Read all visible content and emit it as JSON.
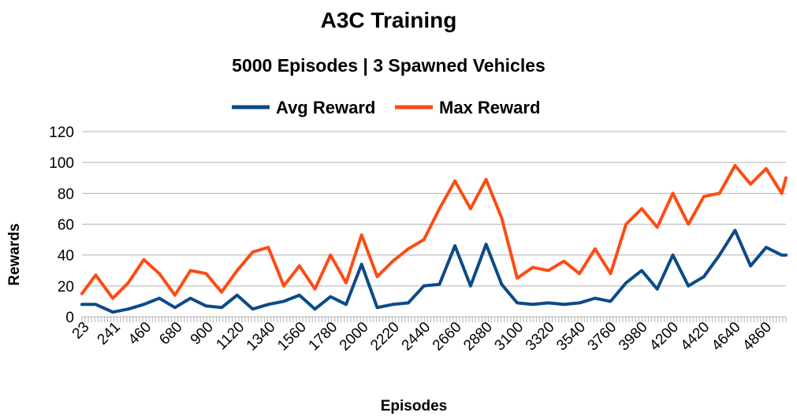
{
  "chart_data": {
    "type": "line",
    "title": "A3C Training",
    "subtitle": "5000 Episodes | 3 Spawned Vehicles",
    "xlabel": "Episodes",
    "ylabel": "Rewards",
    "ylim": [
      0,
      120
    ],
    "yticks": [
      0,
      20,
      40,
      60,
      80,
      100,
      120
    ],
    "xticks": [
      "23",
      "241",
      "460",
      "680",
      "900",
      "1120",
      "1340",
      "1560",
      "1780",
      "2000",
      "2220",
      "2440",
      "2660",
      "2880",
      "3100",
      "3320",
      "3540",
      "3760",
      "3980",
      "4200",
      "4420",
      "4640",
      "4860"
    ],
    "x_range": [
      23,
      5000
    ],
    "grid": "horizontal",
    "legend": "top",
    "series": [
      {
        "name": "Avg Reward",
        "color": "#0d4a87",
        "x": [
          23,
          120,
          241,
          350,
          460,
          570,
          680,
          790,
          900,
          1010,
          1120,
          1230,
          1340,
          1450,
          1560,
          1670,
          1780,
          1890,
          2000,
          2110,
          2220,
          2330,
          2440,
          2550,
          2660,
          2770,
          2880,
          2990,
          3100,
          3210,
          3320,
          3430,
          3540,
          3650,
          3760,
          3870,
          3980,
          4090,
          4200,
          4310,
          4420,
          4530,
          4640,
          4750,
          4860,
          4970,
          5000
        ],
        "y": [
          8,
          8,
          3,
          5,
          8,
          12,
          6,
          12,
          7,
          6,
          14,
          5,
          8,
          10,
          14,
          5,
          13,
          8,
          34,
          6,
          8,
          9,
          20,
          21,
          46,
          20,
          47,
          21,
          9,
          8,
          9,
          8,
          9,
          12,
          10,
          22,
          30,
          18,
          40,
          20,
          26,
          40,
          56,
          33,
          45,
          40,
          40
        ]
      },
      {
        "name": "Max Reward",
        "color": "#fc4c14",
        "x": [
          23,
          120,
          241,
          350,
          460,
          570,
          680,
          790,
          900,
          1010,
          1120,
          1230,
          1340,
          1450,
          1560,
          1670,
          1780,
          1890,
          2000,
          2110,
          2220,
          2330,
          2440,
          2550,
          2660,
          2770,
          2880,
          2990,
          3100,
          3210,
          3320,
          3430,
          3540,
          3650,
          3760,
          3870,
          3980,
          4090,
          4200,
          4310,
          4420,
          4530,
          4640,
          4750,
          4860,
          4970,
          5000
        ],
        "y": [
          15,
          27,
          12,
          22,
          37,
          28,
          14,
          30,
          28,
          16,
          30,
          42,
          45,
          20,
          33,
          18,
          40,
          22,
          53,
          26,
          36,
          44,
          50,
          70,
          88,
          70,
          89,
          64,
          25,
          32,
          30,
          36,
          28,
          44,
          28,
          60,
          70,
          58,
          80,
          60,
          78,
          80,
          98,
          86,
          96,
          80,
          90
        ]
      }
    ]
  }
}
